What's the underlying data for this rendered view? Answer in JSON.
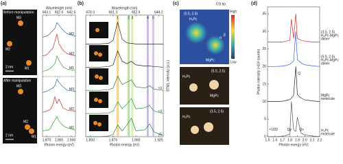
{
  "panels": [
    "(a)",
    "(b)",
    "(c)",
    "(d)"
  ],
  "panel_c": {
    "title": "CO tip",
    "top_coords": "(5.5, 2.5)",
    "top_h2pc": "H₂Pc",
    "top_mgpc": "MgPc",
    "high": "High",
    "low": "Low",
    "alpha": "α",
    "beta": "β",
    "mid_coords": "(5.5, 2.5)",
    "mid_h2pc": "H₂Pc",
    "mid_mgpc": "MgPc",
    "bot_coords": "(3.5, 2.5)",
    "bot_h2pc": "H₂Pc"
  },
  "chart_data": [
    {
      "type": "line",
      "label": "(a)",
      "xlabel": "Photon energy (eV)",
      "x2label": "Wavelength (nm)",
      "xlim": [
        1.86,
        1.94
      ],
      "xticks": [
        {
          "value": 1.87,
          "label": "1.870"
        },
        {
          "value": 1.9,
          "label": "1.900"
        },
        {
          "value": 1.93,
          "label": "1.930"
        }
      ],
      "x2ticks": [
        {
          "value": 1.87,
          "label": "663.1"
        },
        {
          "value": 1.9,
          "label": "652.6"
        },
        {
          "value": 1.93,
          "label": "642.5"
        }
      ],
      "ylim": [
        0,
        11
      ],
      "image_labels": {
        "before": "Before manipulation",
        "after": "After manipulation",
        "m1a": "M1",
        "m2a": "M2",
        "m3a": "M3",
        "m1b": "M1",
        "m2b": "M2",
        "m3b": "M3",
        "scale_a": "2 nm",
        "scale_b": "2 nm"
      },
      "x": [
        1.86,
        1.87,
        1.875,
        1.88,
        1.885,
        1.89,
        1.895,
        1.9,
        1.91,
        1.92,
        1.94
      ],
      "series": [
        {
          "name": "M3",
          "color": "#2b5fb4",
          "values": [
            9.0,
            9.1,
            9.2,
            9.4,
            9.6,
            9.8,
            10.3,
            10.1,
            9.6,
            9.3,
            9.1
          ]
        },
        {
          "name": "M2",
          "color": "#d62728",
          "values": [
            7.3,
            7.4,
            7.6,
            7.8,
            8.0,
            8.6,
            9.3,
            8.4,
            7.8,
            7.5,
            7.3
          ]
        },
        {
          "name": "M1",
          "color": "#2ca02c",
          "values": [
            5.9,
            6.0,
            6.1,
            6.2,
            6.4,
            6.6,
            7.3,
            6.9,
            6.3,
            6.1,
            6.0
          ]
        },
        {
          "name": "M3",
          "color": "#2b5fb4",
          "values": [
            4.0,
            4.1,
            4.2,
            4.3,
            4.4,
            4.6,
            5.2,
            4.9,
            4.5,
            4.2,
            4.1
          ]
        },
        {
          "name": "M2",
          "color": "#d62728",
          "values": [
            2.2,
            2.3,
            2.4,
            2.5,
            2.9,
            3.6,
            3.0,
            3.4,
            2.6,
            2.4,
            2.3
          ]
        },
        {
          "name": "M1",
          "color": "#2ca02c",
          "values": [
            0.5,
            0.6,
            0.6,
            0.8,
            1.2,
            1.5,
            1.8,
            1.4,
            1.0,
            0.8,
            0.6
          ]
        }
      ]
    },
    {
      "type": "line",
      "label": "(b)",
      "xlabel": "Photon energy (eV)",
      "x2label": "Wavelength (nm)",
      "ylabel": "STML intensity (a.u.)",
      "xlim": [
        1.845,
        1.93
      ],
      "xticks": [
        {
          "value": 1.85,
          "label": "1.850"
        },
        {
          "value": 1.875,
          "label": "1.875"
        },
        {
          "value": 1.9,
          "label": "1.900"
        },
        {
          "value": 1.925,
          "label": "1.925"
        }
      ],
      "x2ticks": [
        {
          "value": 1.85,
          "label": "670.3"
        },
        {
          "value": 1.875,
          "label": "661.3"
        },
        {
          "value": 1.9,
          "label": "652.6"
        },
        {
          "value": 1.925,
          "label": "644.2"
        }
      ],
      "ylim": [
        0,
        10.5
      ],
      "bands": [
        {
          "value": 1.88,
          "label": "1",
          "color": "#f6c77e"
        },
        {
          "value": 1.892,
          "label": "2",
          "color": "#a6d98a"
        },
        {
          "value": 1.896,
          "label": "3",
          "color": "#cde8a0"
        },
        {
          "value": 1.913,
          "label": "4",
          "color": "#b9a6e0"
        },
        {
          "value": 1.919,
          "label": "5",
          "color": "#c9b8ea"
        }
      ],
      "factors": [
        "×3",
        "×3",
        "×5"
      ],
      "x": [
        1.845,
        1.86,
        1.87,
        1.875,
        1.88,
        1.885,
        1.89,
        1.895,
        1.9,
        1.91,
        1.915,
        1.92,
        1.93
      ],
      "series": [
        {
          "color": "#222222",
          "values": [
            8,
            8,
            8.05,
            8.3,
            9.9,
            8.4,
            8.1,
            8.05,
            8,
            8,
            8,
            8,
            8
          ]
        },
        {
          "color": "#222222",
          "values": [
            6,
            6,
            6.05,
            6.2,
            7.4,
            6.5,
            6.3,
            6.5,
            6.2,
            6.1,
            6.1,
            6.05,
            6
          ]
        },
        {
          "color": "#2a7a2a",
          "values": [
            4,
            4,
            4.05,
            4.2,
            5.2,
            4.5,
            4.7,
            4.9,
            4.3,
            4.2,
            4.4,
            4.1,
            4
          ]
        },
        {
          "color": "#2a9a3a",
          "values": [
            2,
            2,
            2.05,
            2.2,
            3.0,
            2.4,
            2.8,
            3.3,
            2.4,
            2.5,
            2.7,
            2.2,
            2
          ]
        },
        {
          "color": "#1e8a3a",
          "values": [
            0,
            0,
            0.05,
            0.2,
            1.0,
            0.5,
            1.0,
            1.6,
            0.5,
            0.6,
            1.1,
            0.4,
            0.1
          ]
        }
      ]
    },
    {
      "type": "line",
      "label": "(d)",
      "xlabel": "Photon energy (eV)",
      "ylabel": "Photon intensity (×10³ counts)",
      "xlim": [
        1.5,
        2.2
      ],
      "xticks": [
        1.5,
        1.6,
        1.7,
        1.8,
        1.9,
        {
          "value": 2,
          "label": "2.0"
        },
        2.1,
        2.2
      ],
      "ylim": [
        0,
        37
      ],
      "yticks": [
        0,
        5,
        10,
        15,
        20,
        25,
        30,
        35
      ],
      "annotations": {
        "q": "Q",
        "qx": "Qx",
        "qy": "Qy",
        "scale": "×1/20"
      },
      "x": [
        1.5,
        1.6,
        1.7,
        1.75,
        1.8,
        1.82,
        1.85,
        1.88,
        1.9,
        1.95,
        2.0,
        2.1,
        2.2
      ],
      "series": [
        {
          "name": "H₂Pc-MgPc",
          "note": "dimer",
          "coords": "(3.5, 2.5)",
          "color": "#d62728",
          "values": [
            27,
            27,
            27,
            27.2,
            27.5,
            33.5,
            28,
            35,
            28,
            27.5,
            27.2,
            27,
            27
          ]
        },
        {
          "name": "H₂Pc-MgPc",
          "note": "dimer",
          "coords": "(5.5, 2.5)",
          "color": "#3b5bdb",
          "values": [
            20,
            20,
            20.1,
            20.3,
            20.6,
            21,
            21.5,
            30,
            22,
            21,
            20.5,
            20.2,
            20
          ]
        },
        {
          "name": "MgPc",
          "note": "molecule",
          "color": "#222222",
          "values": [
            10,
            10,
            10.1,
            10.3,
            10.6,
            11,
            11.8,
            20,
            12,
            11,
            10.5,
            10.2,
            10
          ]
        },
        {
          "name": "H₂Pc",
          "note": "molecule",
          "color": "#555555",
          "values": [
            0,
            0,
            0.1,
            0.3,
            0.8,
            10,
            2,
            1.5,
            5.5,
            1,
            0.5,
            0.2,
            0
          ]
        }
      ]
    }
  ]
}
